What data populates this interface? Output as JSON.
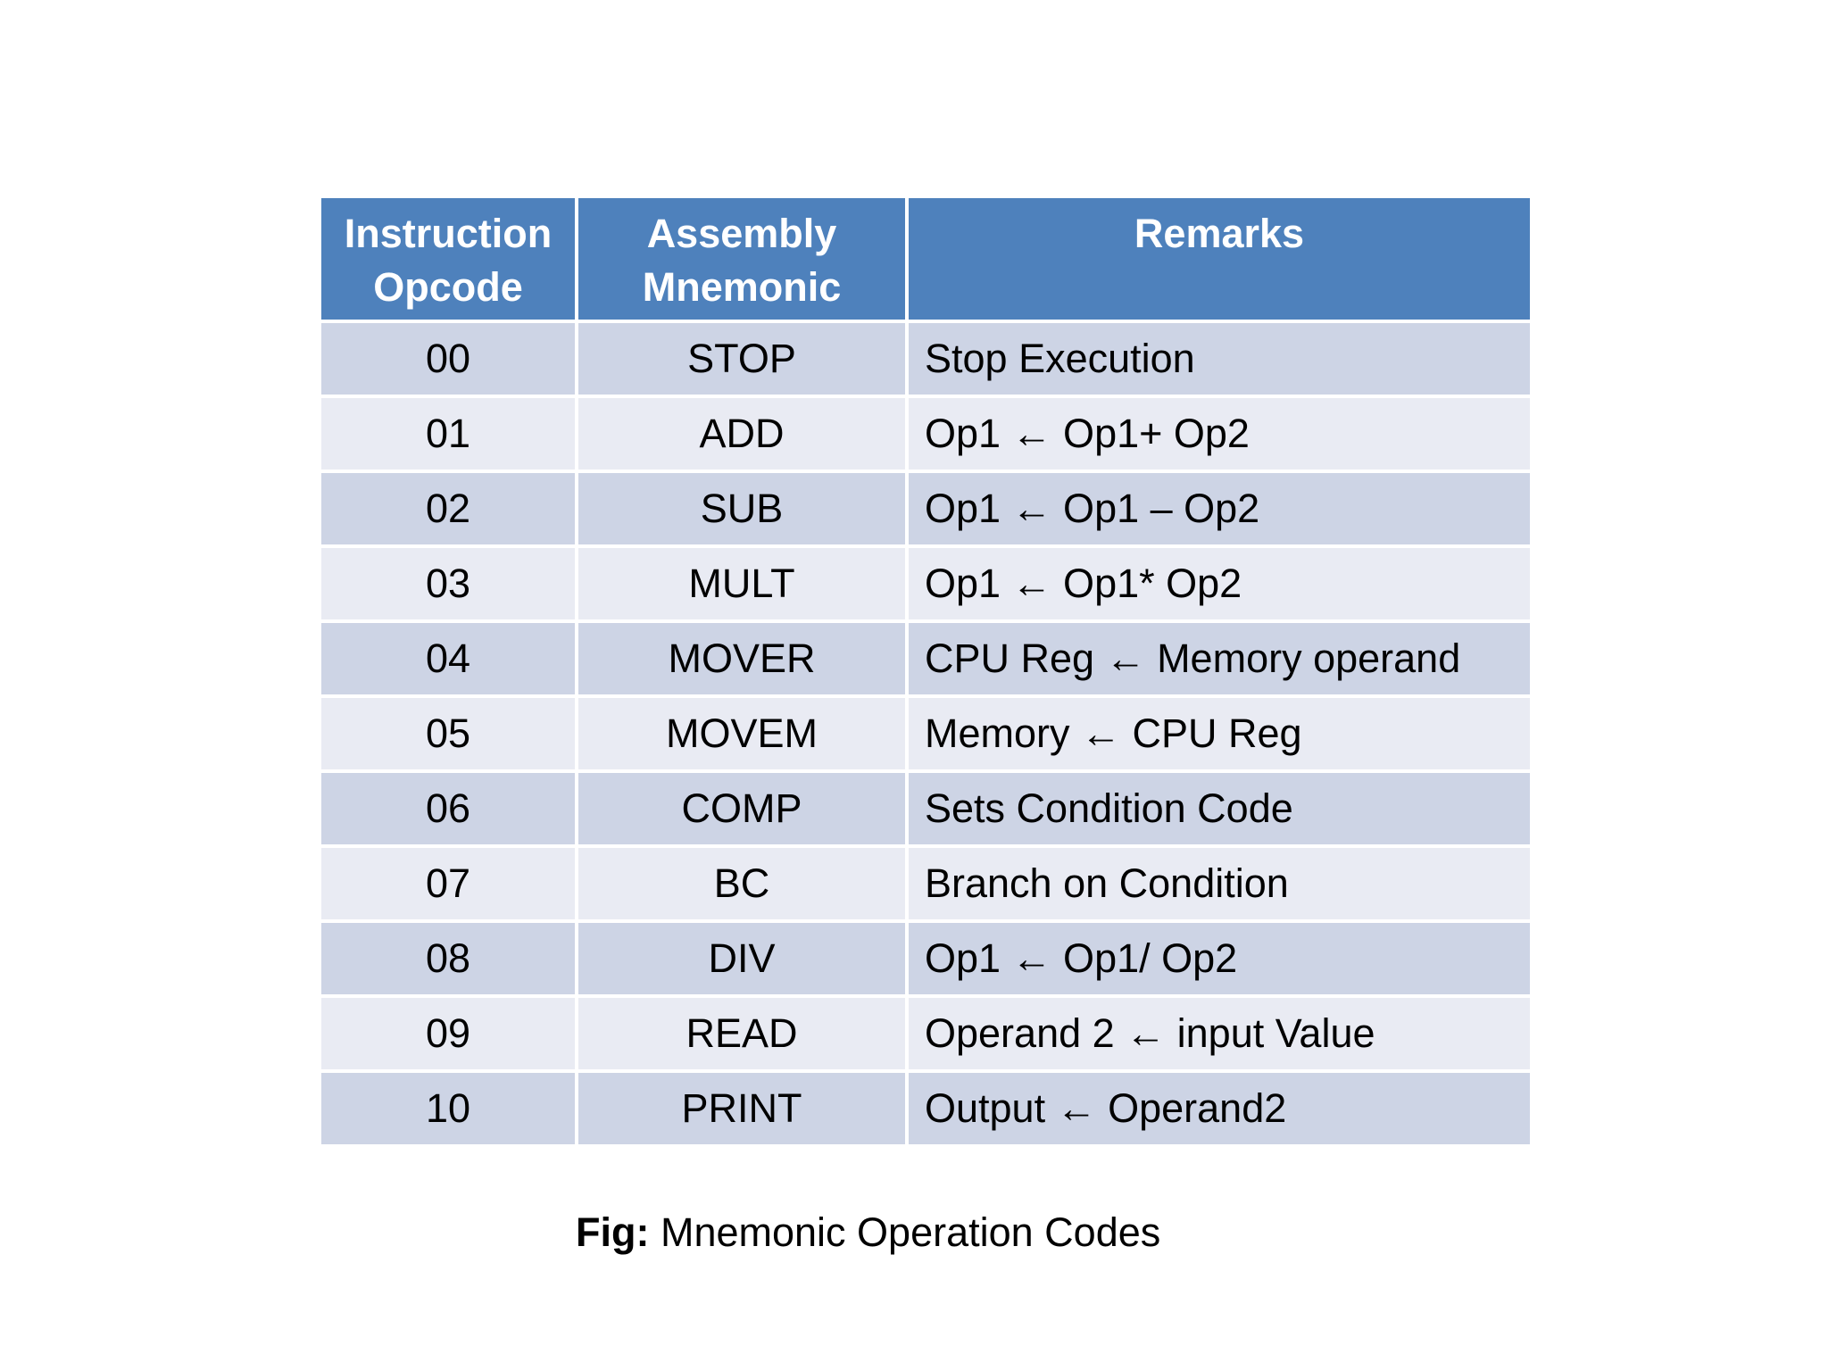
{
  "colors": {
    "header_bg": "#4E81BC",
    "header_text": "#FFFFFF",
    "row_dark": "#CDD4E5",
    "row_light": "#E9EBF3",
    "border": "#FFFFFF",
    "text": "#000000"
  },
  "table": {
    "headers": {
      "opcode": "Instruction\nOpcode",
      "mnemonic": "Assembly\nMnemonic",
      "remarks": "Remarks"
    },
    "rows": [
      {
        "opcode": "00",
        "mnemonic": "STOP",
        "remarks": "Stop Execution"
      },
      {
        "opcode": "01",
        "mnemonic": "ADD",
        "remarks": "Op1 ← Op1+ Op2"
      },
      {
        "opcode": "02",
        "mnemonic": "SUB",
        "remarks": "Op1 ← Op1 – Op2"
      },
      {
        "opcode": "03",
        "mnemonic": "MULT",
        "remarks": "Op1 ← Op1* Op2"
      },
      {
        "opcode": "04",
        "mnemonic": "MOVER",
        "remarks": "CPU Reg ← Memory operand"
      },
      {
        "opcode": "05",
        "mnemonic": "MOVEM",
        "remarks": "Memory ← CPU Reg"
      },
      {
        "opcode": "06",
        "mnemonic": "COMP",
        "remarks": "Sets Condition Code"
      },
      {
        "opcode": "07",
        "mnemonic": "BC",
        "remarks": "Branch on Condition"
      },
      {
        "opcode": "08",
        "mnemonic": "DIV",
        "remarks": "Op1 ← Op1/ Op2"
      },
      {
        "opcode": "09",
        "mnemonic": "READ",
        "remarks": "Operand 2 ← input Value"
      },
      {
        "opcode": "10",
        "mnemonic": "PRINT",
        "remarks": "Output ← Operand2"
      }
    ]
  },
  "figure": {
    "caption_prefix": "Fig:",
    "caption_text": " Mnemonic Operation Codes"
  }
}
